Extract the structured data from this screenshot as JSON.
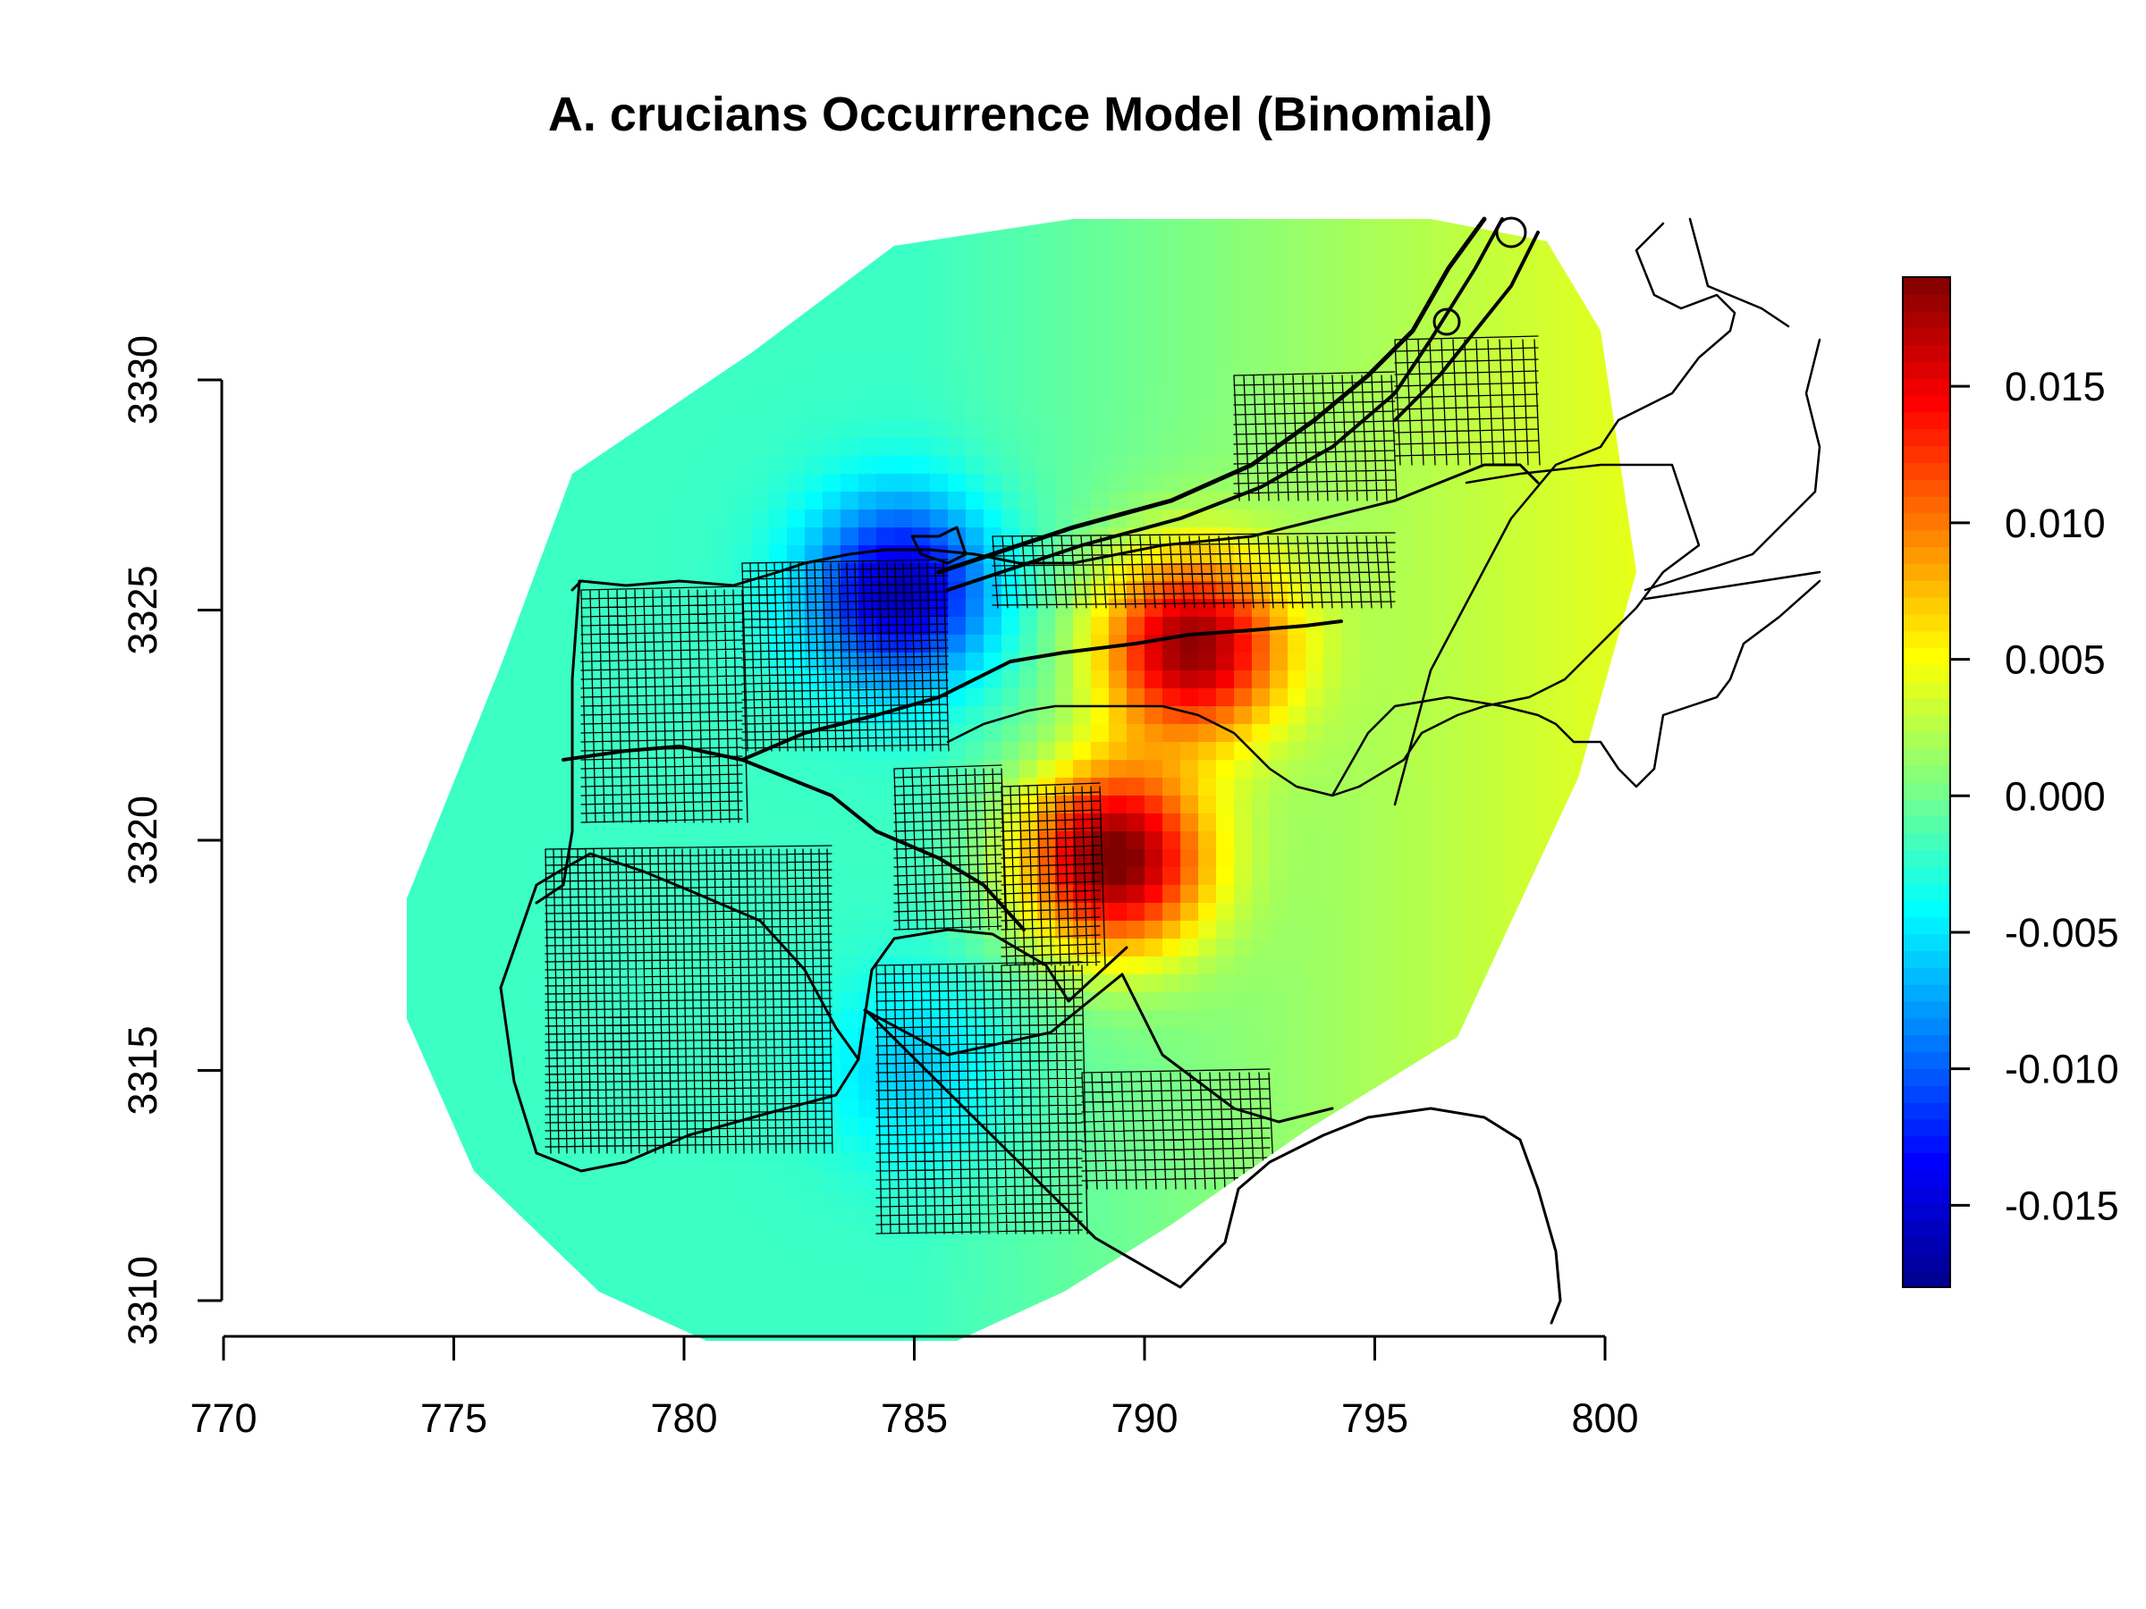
{
  "chart_data": {
    "type": "heatmap",
    "title": "A. crucians Occurrence Model (Binomial)",
    "xlabel": "",
    "ylabel": "",
    "xlim": [
      770,
      800
    ],
    "ylim": [
      3310,
      3330
    ],
    "x_ticks": [
      "770",
      "775",
      "780",
      "785",
      "790",
      "795",
      "800"
    ],
    "y_ticks": [
      "3310",
      "3315",
      "3320",
      "3325",
      "3330"
    ],
    "colorbar": {
      "range": [
        -0.018,
        0.019
      ],
      "ticks": [
        "-0.015",
        "-0.010",
        "-0.005",
        "0.000",
        "0.005",
        "0.010",
        "0.015"
      ],
      "colors": [
        "#00008b",
        "#0000ff",
        "#0080ff",
        "#00ffff",
        "#80ff80",
        "#ffff00",
        "#ff8000",
        "#ff0000",
        "#800000"
      ]
    },
    "hotspots": [
      {
        "x": 789.3,
        "y": 3319.6,
        "value": 0.018
      },
      {
        "x": 791.0,
        "y": 3324.2,
        "value": 0.016
      },
      {
        "x": 784.7,
        "y": 3325.4,
        "value": -0.016
      },
      {
        "x": 785.0,
        "y": 3315.0,
        "value": -0.006
      }
    ],
    "baseline_value": -0.002
  }
}
